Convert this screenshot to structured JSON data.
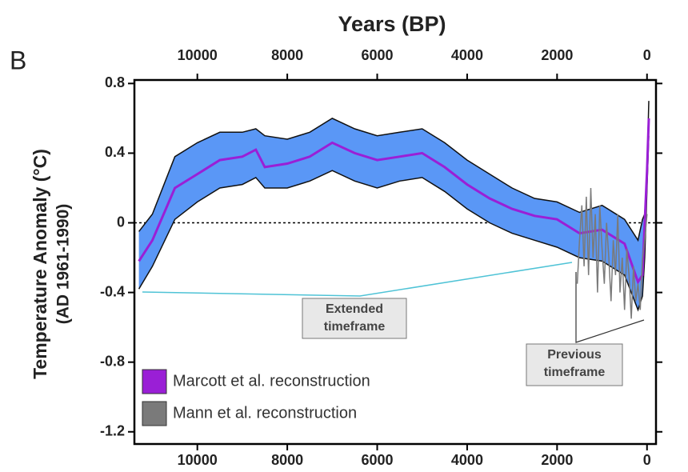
{
  "chart_data": {
    "type": "line",
    "panel_label": "B",
    "xlabel": "Years (BP)",
    "ylabel": [
      "Temperature Anomaly (°C)",
      "(AD 1961-1990)"
    ],
    "xlim": [
      11400,
      -200
    ],
    "xticks": [
      10000,
      8000,
      6000,
      4000,
      2000,
      0
    ],
    "ylim": [
      -1.27,
      0.82
    ],
    "yticks": [
      -1.2,
      -0.8,
      -0.4,
      0,
      0.4,
      0.8
    ],
    "zero_line": true,
    "legend": "lower left",
    "series": [
      {
        "name": "Marcott et al. reconstruction",
        "color": "#9a1fd6",
        "band_color": "#5a97f6",
        "x": [
          11300,
          11000,
          10500,
          10000,
          9500,
          9000,
          8700,
          8500,
          8000,
          7500,
          7000,
          6500,
          6000,
          5500,
          5000,
          4500,
          4000,
          3500,
          3000,
          2500,
          2000,
          1500,
          1000,
          500,
          200,
          100,
          50,
          0,
          -40
        ],
        "values": [
          -0.22,
          -0.1,
          0.2,
          0.28,
          0.36,
          0.38,
          0.42,
          0.32,
          0.34,
          0.38,
          0.46,
          0.4,
          0.36,
          0.38,
          0.4,
          0.32,
          0.22,
          0.14,
          0.08,
          0.04,
          0.02,
          -0.06,
          -0.04,
          -0.12,
          -0.34,
          -0.3,
          0,
          0.3,
          0.6
        ],
        "upper": [
          -0.05,
          0.05,
          0.38,
          0.46,
          0.52,
          0.52,
          0.54,
          0.5,
          0.48,
          0.52,
          0.6,
          0.54,
          0.5,
          0.52,
          0.54,
          0.46,
          0.36,
          0.28,
          0.2,
          0.14,
          0.12,
          0.06,
          0.1,
          0.02,
          -0.1,
          0.02,
          0.05,
          0.3,
          0.7
        ],
        "lower": [
          -0.38,
          -0.25,
          0.02,
          0.12,
          0.2,
          0.22,
          0.26,
          0.2,
          0.2,
          0.24,
          0.3,
          0.24,
          0.2,
          0.24,
          0.26,
          0.18,
          0.08,
          0,
          -0.06,
          -0.1,
          -0.14,
          -0.2,
          -0.22,
          -0.3,
          -0.5,
          -0.42,
          -0.2,
          0.2,
          0.5
        ]
      },
      {
        "name": "Mann et al. reconstruction",
        "color": "#7a7a7a",
        "x": [
          1550,
          1500,
          1450,
          1400,
          1350,
          1300,
          1250,
          1200,
          1150,
          1100,
          1050,
          1000,
          950,
          900,
          850,
          800,
          750,
          700,
          650,
          600,
          550,
          500,
          450,
          400,
          350,
          300,
          250,
          200,
          150,
          100,
          50,
          0
        ],
        "values": [
          -0.35,
          -0.1,
          0.1,
          -0.25,
          0.15,
          -0.3,
          0.2,
          -0.2,
          0.05,
          -0.4,
          0.1,
          -0.15,
          -0.35,
          0,
          -0.2,
          -0.45,
          -0.1,
          -0.3,
          0.05,
          -0.4,
          -0.2,
          -0.5,
          -0.15,
          -0.3,
          -0.55,
          -0.25,
          -0.45,
          -0.35,
          -0.5,
          -0.2,
          -0.1,
          0.05
        ]
      }
    ],
    "annotations": [
      {
        "lines": [
          "Extended",
          "timeframe"
        ]
      },
      {
        "lines": [
          "Previous",
          "timeframe"
        ]
      }
    ]
  }
}
